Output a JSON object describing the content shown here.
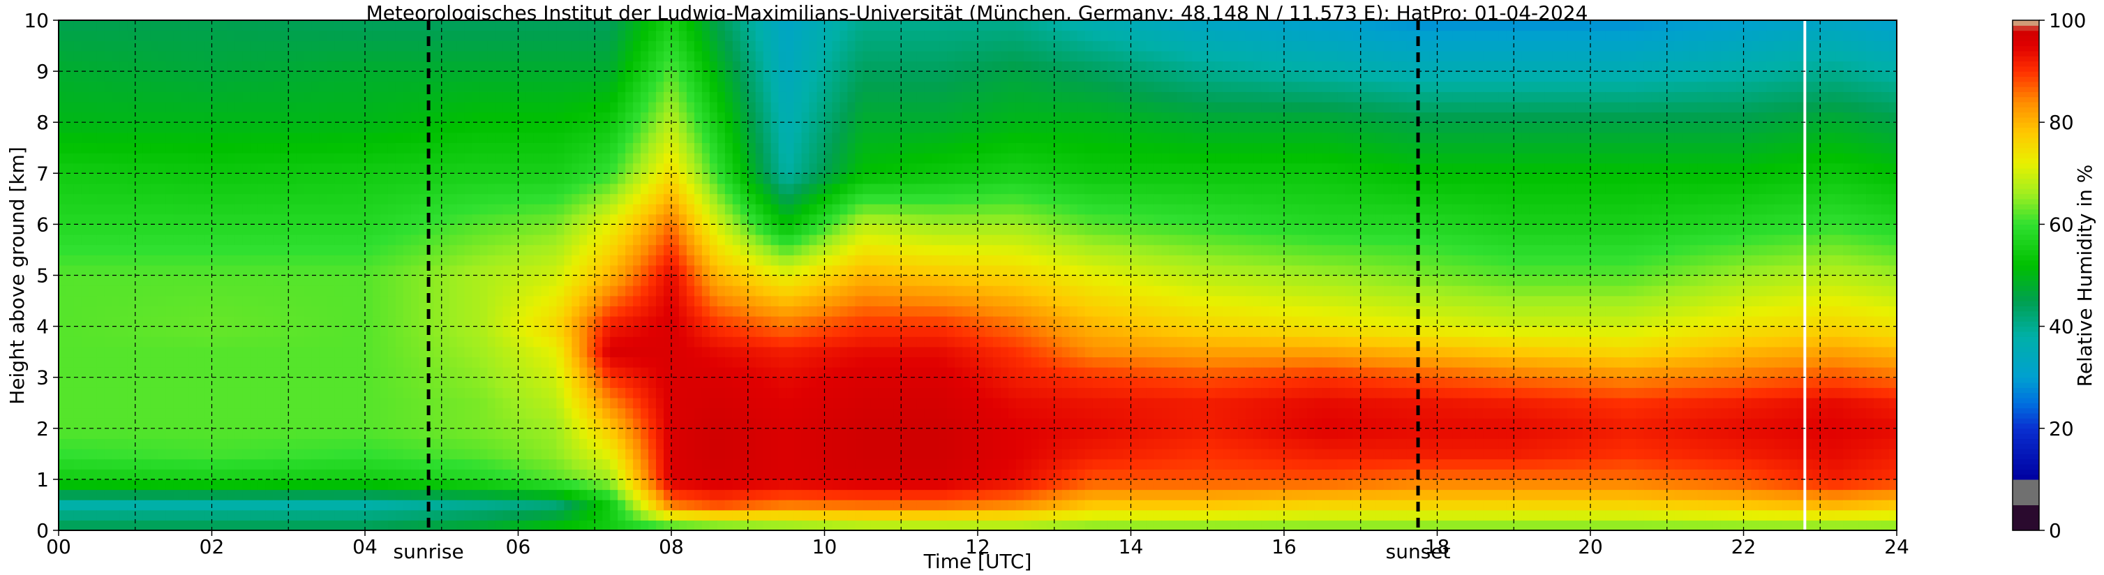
{
  "chart_data": {
    "type": "heatmap",
    "title": "Meteorologisches Institut der Ludwig-Maximilians-Universität (München, Germany; 48.148 N / 11.573 E):    HatPro: 01-04-2024",
    "xlabel": "Time [UTC]",
    "ylabel": "Height above ground [km]",
    "xlim": [
      0,
      24
    ],
    "ylim": [
      0,
      10
    ],
    "x_tick_labels": [
      "00",
      "02",
      "04",
      "06",
      "08",
      "10",
      "12",
      "14",
      "16",
      "18",
      "20",
      "22",
      "24"
    ],
    "y_tick_labels": [
      "0",
      "1",
      "2",
      "3",
      "4",
      "5",
      "6",
      "7",
      "8",
      "9",
      "10"
    ],
    "grid": true,
    "colorbar": {
      "label": "Relative Humidity in %",
      "range": [
        0,
        100
      ],
      "tick_labels": [
        "0",
        "20",
        "40",
        "60",
        "80",
        "100"
      ],
      "colors": [
        "#2a0a2e",
        "#707070",
        "#0000a0",
        "#0a2fd0",
        "#0070e0",
        "#00a0d0",
        "#00b0a8",
        "#00a050",
        "#00c000",
        "#30e030",
        "#a0ee20",
        "#e8f000",
        "#ffc800",
        "#ff8c00",
        "#ff3000",
        "#e00000",
        "#d0d0a0"
      ]
    },
    "annotations": [
      {
        "text": "sunrise",
        "x": 4.83
      },
      {
        "text": "sunset",
        "x": 17.75
      }
    ],
    "data_gap_at_hour": 22.8,
    "heights_km": [
      0.05,
      0.5,
      1.0,
      1.5,
      2.0,
      2.5,
      3.0,
      3.5,
      4.0,
      5.0,
      6.0,
      7.0,
      8.0,
      9.0,
      10.0
    ],
    "profiles": [
      {
        "hour": 0.0,
        "rh": [
          45,
          38,
          55,
          60,
          62,
          62,
          62,
          62,
          62,
          62,
          58,
          55,
          50,
          48,
          45
        ]
      },
      {
        "hour": 2.0,
        "rh": [
          45,
          38,
          56,
          61,
          62,
          62,
          62,
          62,
          63,
          62,
          58,
          54,
          50,
          47,
          45
        ]
      },
      {
        "hour": 4.0,
        "rh": [
          45,
          38,
          55,
          60,
          62,
          62,
          62,
          62,
          62,
          62,
          58,
          55,
          50,
          48,
          44
        ]
      },
      {
        "hour": 5.5,
        "rh": [
          48,
          40,
          58,
          62,
          64,
          64,
          65,
          66,
          67,
          67,
          62,
          56,
          52,
          48,
          44
        ]
      },
      {
        "hour": 6.5,
        "rh": [
          52,
          42,
          62,
          65,
          66,
          68,
          70,
          72,
          76,
          70,
          64,
          56,
          52,
          48,
          44
        ]
      },
      {
        "hour": 7.2,
        "rh": [
          55,
          55,
          66,
          72,
          78,
          84,
          90,
          96,
          92,
          80,
          72,
          60,
          54,
          48,
          44
        ]
      },
      {
        "hour": 8.0,
        "rh": [
          60,
          85,
          96,
          96,
          96,
          96,
          96,
          96,
          96,
          94,
          86,
          75,
          68,
          62,
          56
        ]
      },
      {
        "hour": 8.6,
        "rh": [
          62,
          88,
          97,
          98,
          98,
          97,
          96,
          94,
          90,
          80,
          70,
          60,
          55,
          50,
          45
        ]
      },
      {
        "hour": 9.5,
        "rh": [
          64,
          85,
          96,
          96,
          96,
          95,
          94,
          92,
          86,
          72,
          52,
          38,
          36,
          34,
          32
        ]
      },
      {
        "hour": 10.5,
        "rh": [
          66,
          86,
          97,
          98,
          98,
          97,
          96,
          94,
          90,
          80,
          68,
          52,
          48,
          44,
          40
        ]
      },
      {
        "hour": 11.5,
        "rh": [
          66,
          86,
          97,
          98,
          98,
          97,
          96,
          94,
          90,
          78,
          66,
          54,
          48,
          44,
          40
        ]
      },
      {
        "hour": 12.5,
        "rh": [
          66,
          84,
          94,
          95,
          95,
          94,
          92,
          90,
          86,
          76,
          66,
          56,
          50,
          46,
          40
        ]
      },
      {
        "hour": 13.5,
        "rh": [
          64,
          78,
          88,
          92,
          94,
          93,
          90,
          84,
          80,
          72,
          62,
          54,
          50,
          44,
          36
        ]
      },
      {
        "hour": 15.0,
        "rh": [
          64,
          78,
          88,
          90,
          92,
          92,
          88,
          82,
          76,
          68,
          60,
          54,
          48,
          40,
          32
        ]
      },
      {
        "hour": 16.5,
        "rh": [
          64,
          76,
          88,
          92,
          95,
          94,
          90,
          82,
          74,
          66,
          58,
          54,
          48,
          38,
          30
        ]
      },
      {
        "hour": 17.75,
        "rh": [
          64,
          76,
          86,
          92,
          94,
          93,
          88,
          80,
          72,
          64,
          58,
          52,
          46,
          36,
          28
        ]
      },
      {
        "hour": 19.0,
        "rh": [
          64,
          76,
          86,
          92,
          94,
          92,
          86,
          78,
          70,
          62,
          56,
          52,
          46,
          36,
          28
        ]
      },
      {
        "hour": 20.5,
        "rh": [
          64,
          76,
          86,
          90,
          92,
          90,
          84,
          76,
          70,
          62,
          56,
          52,
          46,
          36,
          28
        ]
      },
      {
        "hour": 22.0,
        "rh": [
          64,
          78,
          88,
          92,
          94,
          92,
          86,
          80,
          74,
          66,
          58,
          52,
          46,
          38,
          30
        ]
      },
      {
        "hour": 23.2,
        "rh": [
          64,
          80,
          92,
          94,
          95,
          94,
          88,
          82,
          76,
          68,
          60,
          54,
          48,
          40,
          32
        ]
      },
      {
        "hour": 24.0,
        "rh": [
          64,
          78,
          90,
          92,
          94,
          92,
          86,
          80,
          74,
          66,
          58,
          52,
          46,
          38,
          30
        ]
      }
    ]
  }
}
